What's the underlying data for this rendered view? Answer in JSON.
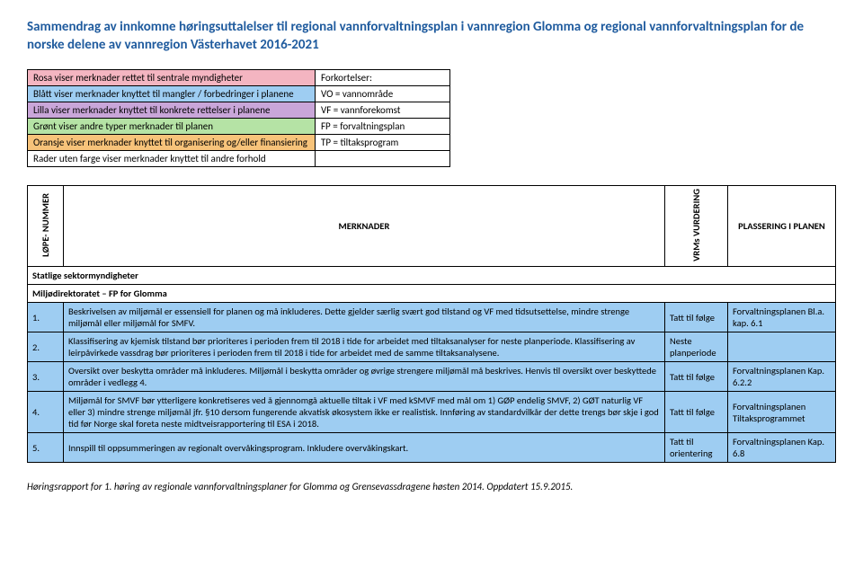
{
  "title": "Sammendrag av innkomne høringsuttalelser til regional vannforvaltningsplan i vannregion Glomma og regional vannforvaltningsplan for de norske delene av vannregion Västerhavet 2016-2021",
  "legend": {
    "rows": [
      {
        "left": "Rosa viser merknader rettet til sentrale myndigheter",
        "right": "Forkortelser:",
        "leftClass": "bg-pink",
        "rightClass": "bg-white"
      },
      {
        "left": "Blått viser merknader knyttet til mangler / forbedringer i planene",
        "right": "VO = vannområde",
        "leftClass": "bg-blue",
        "rightClass": "bg-white"
      },
      {
        "left": "Lilla viser merknader knyttet til konkrete rettelser i planene",
        "right": "VF = vannforekomst",
        "leftClass": "bg-purple",
        "rightClass": "bg-white"
      },
      {
        "left": "Grønt viser andre typer merknader til planen",
        "right": "FP = forvaltningsplan",
        "leftClass": "bg-green",
        "rightClass": "bg-white"
      },
      {
        "left": "Oransje viser merknader knyttet til organisering og/eller finansiering",
        "right": "TP = tiltaksprogram",
        "leftClass": "bg-orange",
        "rightClass": "bg-white"
      },
      {
        "left": "Rader uten farge viser merknader knyttet til andre forhold",
        "right": "",
        "leftClass": "bg-white",
        "rightClass": "bg-white"
      }
    ]
  },
  "headers": {
    "num": "LØPE-\nNUMMER",
    "merk": "MERKNADER",
    "vurd": "VRMs\nVURDERING",
    "plass": "PLASSERING I PLANEN"
  },
  "sections": [
    {
      "type": "header",
      "text": "Statlige sektormyndigheter"
    },
    {
      "type": "header",
      "text": "Miljødirektoratet – FP for Glomma"
    }
  ],
  "rows": [
    {
      "num": "1.",
      "rowClass": "bg-blue",
      "merk": "Beskrivelsen av miljømål er essensiell for planen og må inkluderes. Dette gjelder særlig svært god tilstand og VF med tidsutsettelse, mindre strenge miljømål eller miljømål for SMFV.",
      "vurd": "Tatt til følge",
      "plass": "Forvaltningsplanen Bl.a. kap. 6.1"
    },
    {
      "num": "2.",
      "rowClass": "bg-blue",
      "merk": "Klassifisering av kjemisk tilstand bør prioriteres i perioden frem til 2018 i tide for arbeidet med tiltaksanalyser for neste planperiode. Klassifisering av leirpåvirkede vassdrag bør prioriteres i perioden frem til 2018 i tide for arbeidet med de samme tiltaksanalysene.",
      "vurd": "Neste planperiode",
      "plass": ""
    },
    {
      "num": "3.",
      "rowClass": "bg-blue",
      "merk": "Oversikt over beskytta områder må inkluderes. Miljømål i beskytta områder og øvrige strengere miljømål må beskrives. Henvis til oversikt over beskyttede områder i vedlegg 4.",
      "vurd": "Tatt til følge",
      "plass": "Forvaltningsplanen Kap. 6.2.2"
    },
    {
      "num": "4.",
      "rowClass": "bg-blue",
      "merk": "Miljømål for SMVF bør ytterligere konkretiseres ved å gjennomgå aktuelle tiltak i VF med kSMVF med mål om 1) GØP endelig SMVF, 2) GØT naturlig VF eller 3) mindre strenge miljømål jfr. §10 dersom fungerende akvatisk økosystem ikke er realistisk. Innføring av standardvilkår der dette trengs bør skje i god tid før Norge skal foreta neste midtveisrapportering til ESA i 2018.",
      "vurd": "Tatt til følge",
      "plass": "Forvaltningsplanen Tiltaksprogrammet"
    },
    {
      "num": "5.",
      "rowClass": "bg-blue",
      "merk": "Innspill til oppsummeringen av regionalt overvåkingsprogram. Inkludere overvåkingskart.",
      "vurd": "Tatt til orientering",
      "plass": "Forvaltningsplanen Kap. 6.8"
    }
  ],
  "footer": "Høringsrapport for 1. høring av regionale vannforvaltningsplaner for Glomma og Grensevassdragene høsten 2014. Oppdatert 15.9.2015."
}
